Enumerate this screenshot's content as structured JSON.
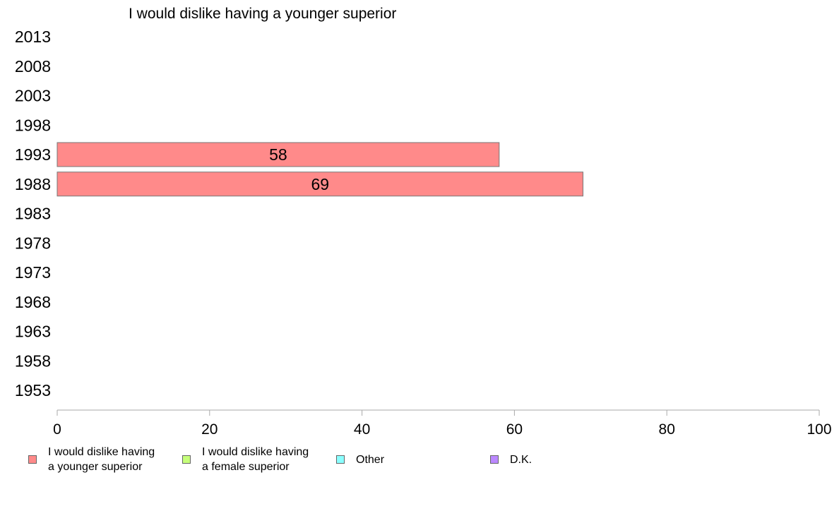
{
  "chart_data": {
    "type": "bar",
    "orientation": "horizontal",
    "title": "I would dislike having a younger superior",
    "categories": [
      "2013",
      "2008",
      "2003",
      "1998",
      "1993",
      "1988",
      "1983",
      "1978",
      "1973",
      "1968",
      "1963",
      "1958",
      "1953"
    ],
    "series": [
      {
        "name": "I would dislike having\na younger superior",
        "color": "#ff8a8a",
        "values": [
          null,
          null,
          null,
          null,
          58,
          69,
          null,
          null,
          null,
          null,
          null,
          null,
          null
        ]
      },
      {
        "name": "I would dislike having\na female superior",
        "color": "#c6ff7a",
        "values": [
          null,
          null,
          null,
          null,
          null,
          null,
          null,
          null,
          null,
          null,
          null,
          null,
          null
        ]
      },
      {
        "name": "Other",
        "color": "#8affff",
        "values": [
          null,
          null,
          null,
          null,
          null,
          null,
          null,
          null,
          null,
          null,
          null,
          null,
          null
        ]
      },
      {
        "name": "D.K.",
        "color": "#bb88ff",
        "values": [
          null,
          null,
          null,
          null,
          null,
          null,
          null,
          null,
          null,
          null,
          null,
          null,
          null
        ]
      }
    ],
    "xlim": [
      0,
      100
    ],
    "xticks": [
      "0",
      "20",
      "40",
      "60",
      "80",
      "100"
    ],
    "grid": false,
    "legend_position": "bottom"
  }
}
